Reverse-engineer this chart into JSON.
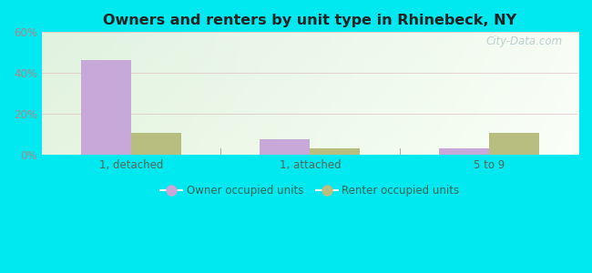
{
  "title": "Owners and renters by unit type in Rhinebeck, NY",
  "categories": [
    "1, detached",
    "1, attached",
    "5 to 9"
  ],
  "owner_values": [
    46.5,
    7.5,
    3.0
  ],
  "renter_values": [
    10.5,
    3.0,
    10.5
  ],
  "owner_color": "#c8a8d8",
  "renter_color": "#b8be80",
  "ylim": [
    0,
    60
  ],
  "yticks": [
    0,
    20,
    40,
    60
  ],
  "ytick_labels": [
    "0%",
    "20%",
    "40%",
    "60%"
  ],
  "legend_owner": "Owner occupied units",
  "legend_renter": "Renter occupied units",
  "background_outer": "#00e8f0",
  "watermark": "City-Data.com",
  "bar_width": 0.28
}
